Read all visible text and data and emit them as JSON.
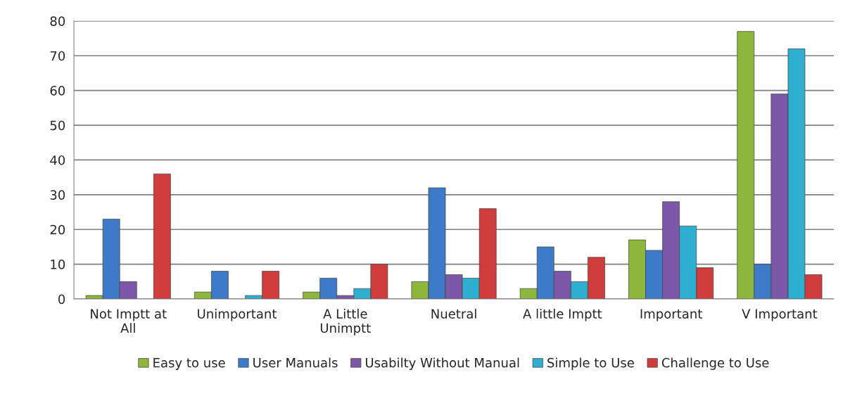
{
  "chart_data": {
    "type": "bar",
    "categories": [
      "Not Imptt at\nAll",
      "Unimportant",
      "A Little\nUnimptt",
      "Nuetral",
      "A little Imptt",
      "Important",
      "V Important"
    ],
    "series": [
      {
        "name": "Easy to use",
        "color": "#8db63c",
        "values": [
          1,
          2,
          2,
          5,
          3,
          17,
          77
        ]
      },
      {
        "name": "User Manuals",
        "color": "#3d7ac8",
        "values": [
          23,
          8,
          6,
          32,
          15,
          14,
          10
        ]
      },
      {
        "name": "Usabilty Without Manual",
        "color": "#7d57a8",
        "values": [
          5,
          null,
          1,
          7,
          8,
          28,
          59
        ]
      },
      {
        "name": "Simple to Use",
        "color": "#2eaed0",
        "values": [
          null,
          1,
          3,
          6,
          5,
          21,
          72
        ]
      },
      {
        "name": "Challenge to Use",
        "color": "#d03c3c",
        "values": [
          36,
          8,
          10,
          26,
          12,
          9,
          7
        ]
      }
    ],
    "ylim": [
      0,
      80
    ],
    "yticks": [
      0,
      10,
      20,
      30,
      40,
      50,
      60,
      70,
      80
    ],
    "grid": "y",
    "legend": "bottom"
  }
}
